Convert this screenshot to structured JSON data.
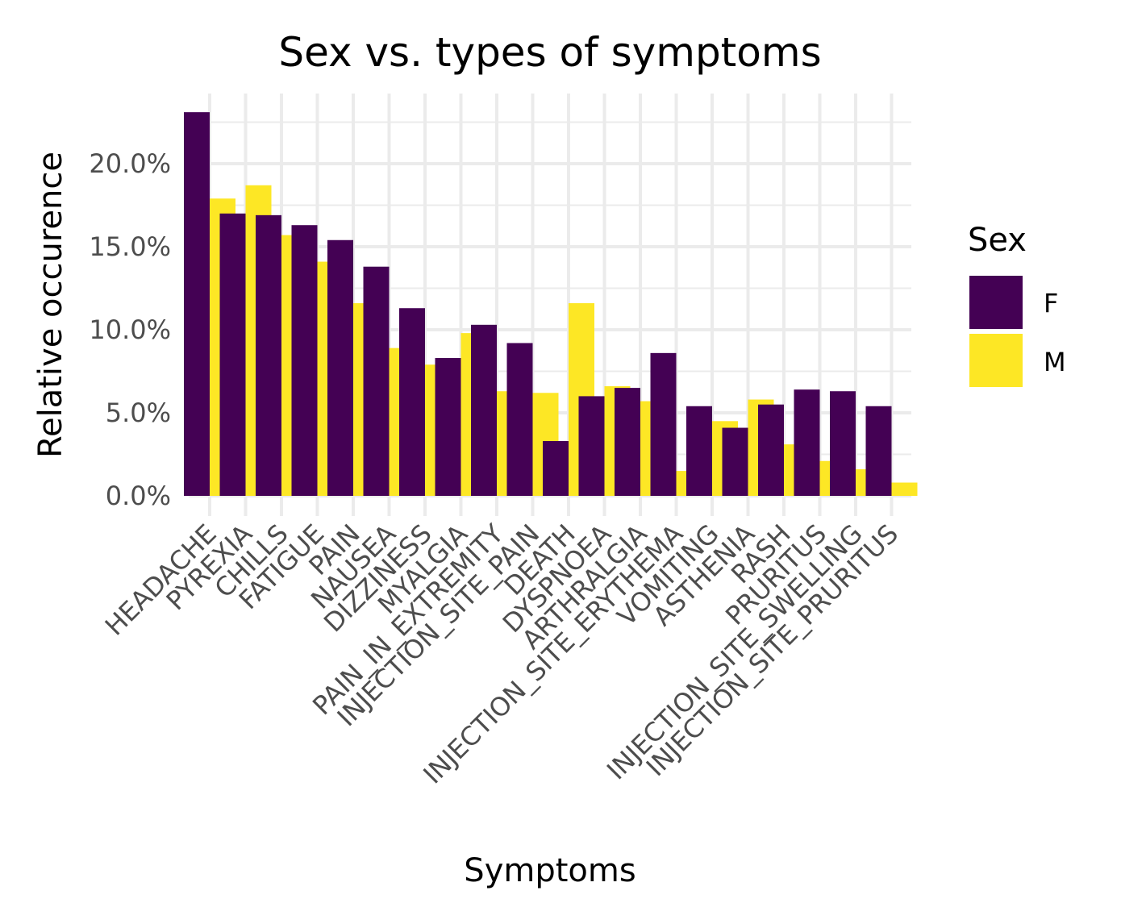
{
  "chart_data": {
    "type": "bar",
    "title": "Sex vs. types of symptoms",
    "xlabel": "Symptoms",
    "ylabel": "Relative occurence",
    "ylim": [
      0,
      0.24
    ],
    "yticks": [
      0,
      0.05,
      0.1,
      0.15,
      0.2
    ],
    "ytick_labels": [
      "0.0%",
      "5.0%",
      "10.0%",
      "15.0%",
      "20.0%"
    ],
    "grid": true,
    "legend": {
      "title": "Sex",
      "position": "right",
      "entries": [
        "F",
        "M"
      ]
    },
    "categories": [
      "HEADACHE",
      "PYREXIA",
      "CHILLS",
      "FATIGUE",
      "PAIN",
      "NAUSEA",
      "DIZZINESS",
      "MYALGIA",
      "PAIN_IN_EXTREMITY",
      "INJECTION_SITE_PAIN",
      "DEATH",
      "DYSPNOEA",
      "ARTHRALGIA",
      "INJECTION_SITE_ERYTHEMA",
      "VOMITING",
      "ASTHENIA",
      "RASH",
      "PRURITUS",
      "INJECTION_SITE_SWELLING",
      "INJECTION_SITE_PRURITUS"
    ],
    "series": [
      {
        "name": "F",
        "color": "#440154",
        "values": [
          0.231,
          0.17,
          0.169,
          0.163,
          0.154,
          0.138,
          0.113,
          0.083,
          0.103,
          0.092,
          0.033,
          0.06,
          0.065,
          0.086,
          0.054,
          0.041,
          0.055,
          0.064,
          0.063,
          0.054
        ]
      },
      {
        "name": "M",
        "color": "#fde725",
        "values": [
          0.179,
          0.187,
          0.157,
          0.141,
          0.116,
          0.089,
          0.079,
          0.098,
          0.063,
          0.062,
          0.116,
          0.066,
          0.057,
          0.015,
          0.045,
          0.058,
          0.031,
          0.021,
          0.016,
          0.008
        ]
      }
    ]
  }
}
